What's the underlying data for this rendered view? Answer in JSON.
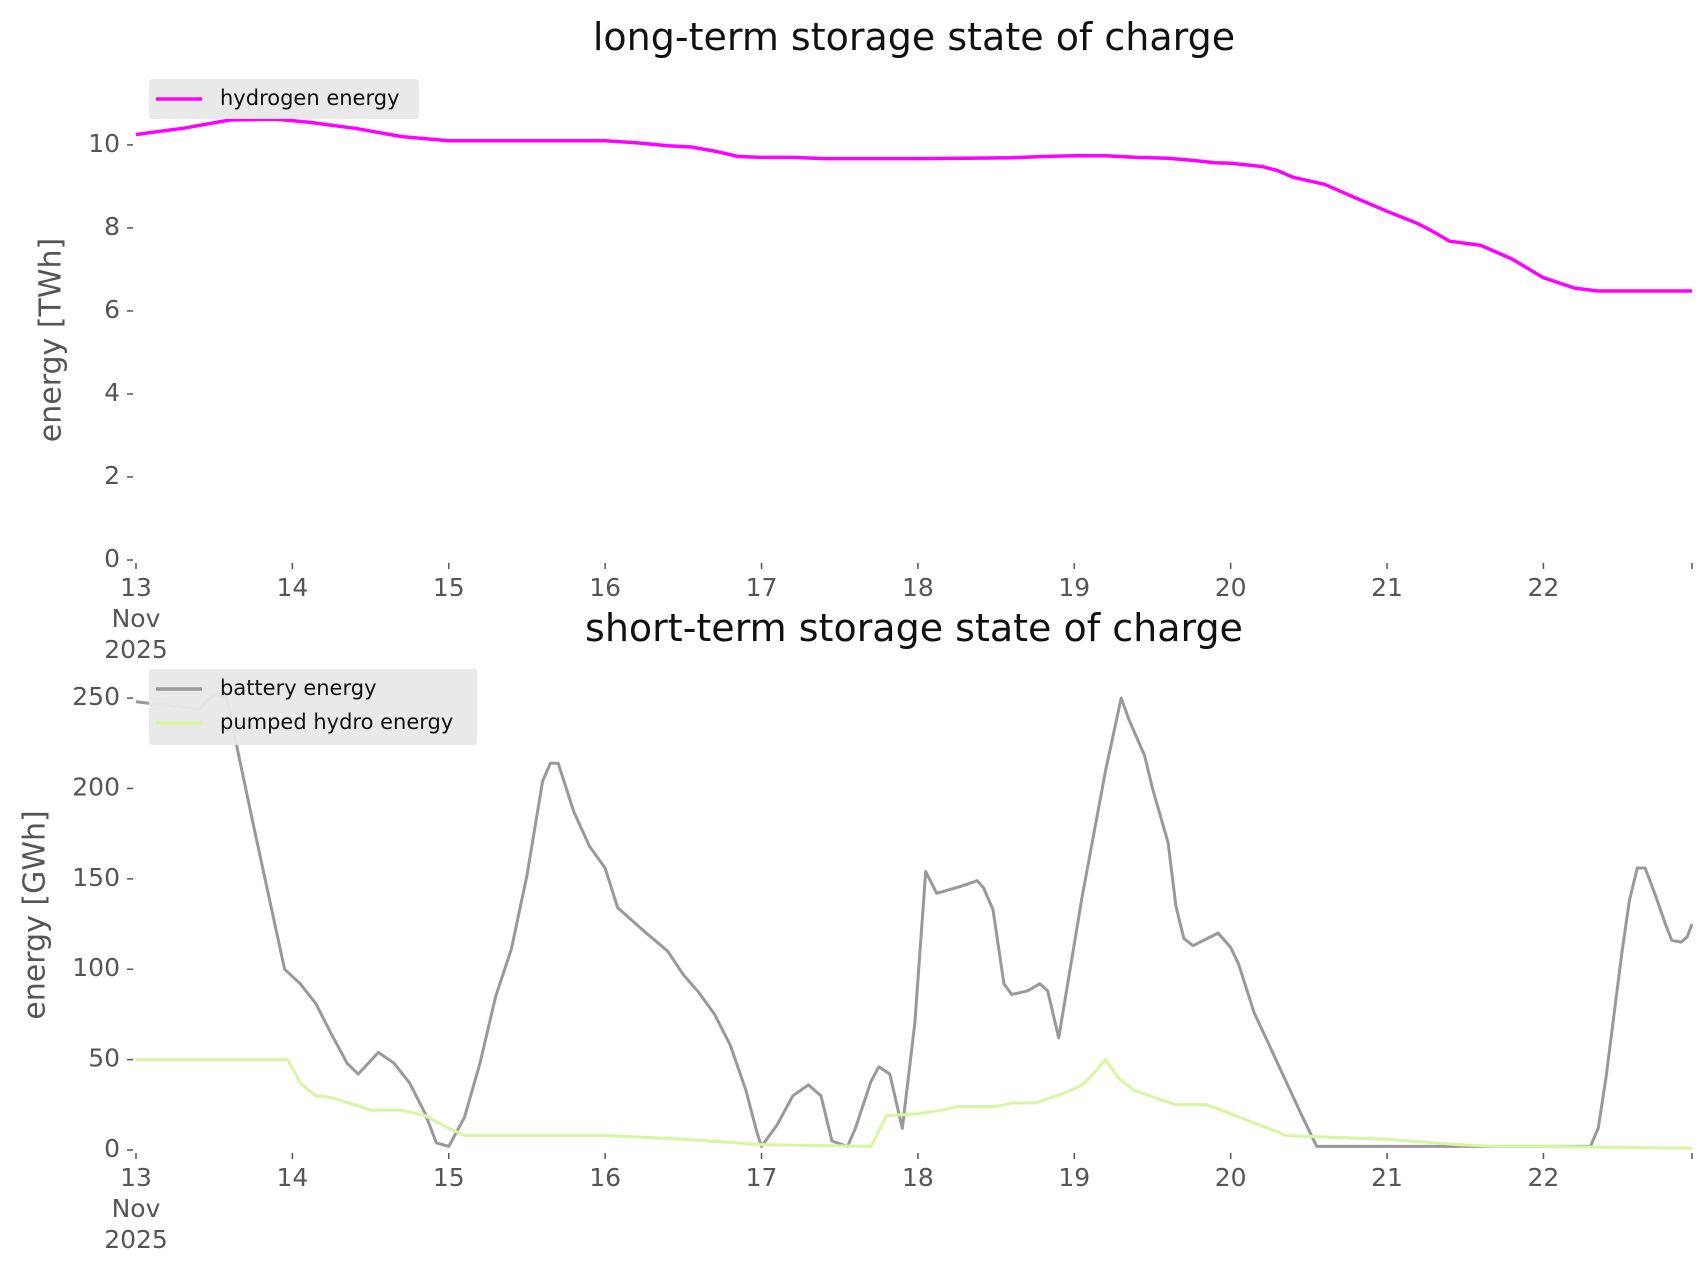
{
  "colors": {
    "hydrogen": "#ff00ff",
    "battery": "#999999",
    "pumped_hydro": "#d8f5a2",
    "legend_bg": "#e8e8e8",
    "axis_text": "#555555"
  },
  "chart_data": [
    {
      "type": "line",
      "title": "long-term storage state of charge",
      "ylabel": "energy [TWh]",
      "xlabel": "",
      "x_unit": "days (Nov 2025)",
      "xlim": [
        13,
        22.95
      ],
      "ylim": [
        0,
        10.6
      ],
      "yticks": [
        0,
        2,
        4,
        6,
        8,
        10
      ],
      "xticks": [
        {
          "value": 13,
          "lines": [
            "13",
            "Nov",
            "2025"
          ]
        },
        {
          "value": 14,
          "lines": [
            "14"
          ]
        },
        {
          "value": 15,
          "lines": [
            "15"
          ]
        },
        {
          "value": 16,
          "lines": [
            "16"
          ]
        },
        {
          "value": 17,
          "lines": [
            "17"
          ]
        },
        {
          "value": 18,
          "lines": [
            "18"
          ]
        },
        {
          "value": 19,
          "lines": [
            "19"
          ]
        },
        {
          "value": 20,
          "lines": [
            "20"
          ]
        },
        {
          "value": 21,
          "lines": [
            "21"
          ]
        },
        {
          "value": 22,
          "lines": [
            "22"
          ]
        }
      ],
      "legend": "upper-left",
      "grid": false,
      "series": [
        {
          "name": "hydrogen energy",
          "color": "#ff00ff",
          "points": [
            [
              13.0,
              10.25
            ],
            [
              13.3,
              10.4
            ],
            [
              13.6,
              10.6
            ],
            [
              13.9,
              10.62
            ],
            [
              14.1,
              10.55
            ],
            [
              14.4,
              10.4
            ],
            [
              14.7,
              10.2
            ],
            [
              15.0,
              10.1
            ],
            [
              15.5,
              10.1
            ],
            [
              16.0,
              10.1
            ],
            [
              16.2,
              10.05
            ],
            [
              16.4,
              9.98
            ],
            [
              16.55,
              9.95
            ],
            [
              16.7,
              9.85
            ],
            [
              16.85,
              9.72
            ],
            [
              17.0,
              9.7
            ],
            [
              17.2,
              9.7
            ],
            [
              17.4,
              9.67
            ],
            [
              17.6,
              9.67
            ],
            [
              18.0,
              9.67
            ],
            [
              18.3,
              9.68
            ],
            [
              18.6,
              9.69
            ],
            [
              18.8,
              9.72
            ],
            [
              19.0,
              9.74
            ],
            [
              19.2,
              9.74
            ],
            [
              19.4,
              9.7
            ],
            [
              19.6,
              9.68
            ],
            [
              19.75,
              9.63
            ],
            [
              19.9,
              9.57
            ],
            [
              20.0,
              9.56
            ],
            [
              20.2,
              9.48
            ],
            [
              20.3,
              9.38
            ],
            [
              20.4,
              9.22
            ],
            [
              20.6,
              9.05
            ],
            [
              20.8,
              8.72
            ],
            [
              21.0,
              8.4
            ],
            [
              21.2,
              8.1
            ],
            [
              21.3,
              7.9
            ],
            [
              21.4,
              7.68
            ],
            [
              21.6,
              7.58
            ],
            [
              21.8,
              7.25
            ],
            [
              22.0,
              6.8
            ],
            [
              22.2,
              6.55
            ],
            [
              22.35,
              6.48
            ],
            [
              22.95,
              6.48
            ]
          ]
        }
      ]
    },
    {
      "type": "line",
      "title": "short-term storage state of charge",
      "ylabel": "energy [GWh]",
      "xlabel": "",
      "x_unit": "days (Nov 2025)",
      "xlim": [
        13,
        22.95
      ],
      "ylim": [
        0,
        260
      ],
      "yticks": [
        0,
        50,
        100,
        150,
        200,
        250
      ],
      "xticks": [
        {
          "value": 13,
          "lines": [
            "13",
            "Nov",
            "2025"
          ]
        },
        {
          "value": 14,
          "lines": [
            "14"
          ]
        },
        {
          "value": 15,
          "lines": [
            "15"
          ]
        },
        {
          "value": 16,
          "lines": [
            "16"
          ]
        },
        {
          "value": 17,
          "lines": [
            "17"
          ]
        },
        {
          "value": 18,
          "lines": [
            "18"
          ]
        },
        {
          "value": 19,
          "lines": [
            "19"
          ]
        },
        {
          "value": 20,
          "lines": [
            "20"
          ]
        },
        {
          "value": 21,
          "lines": [
            "21"
          ]
        },
        {
          "value": 22,
          "lines": [
            "22"
          ]
        }
      ],
      "legend": "upper-left",
      "grid": false,
      "series": [
        {
          "name": "battery energy",
          "color": "#999999",
          "points": [
            [
              13.0,
              248
            ],
            [
              13.4,
              244
            ],
            [
              13.5,
              252
            ],
            [
              13.58,
              250
            ],
            [
              13.75,
              180
            ],
            [
              13.95,
              100
            ],
            [
              14.05,
              92
            ],
            [
              14.15,
              81
            ],
            [
              14.25,
              64
            ],
            [
              14.35,
              48
            ],
            [
              14.42,
              42
            ],
            [
              14.55,
              54
            ],
            [
              14.65,
              48
            ],
            [
              14.75,
              37
            ],
            [
              14.85,
              20
            ],
            [
              14.92,
              4
            ],
            [
              15.0,
              2
            ],
            [
              15.1,
              18
            ],
            [
              15.2,
              48
            ],
            [
              15.3,
              85
            ],
            [
              15.4,
              111
            ],
            [
              15.5,
              152
            ],
            [
              15.6,
              204
            ],
            [
              15.65,
              214
            ],
            [
              15.7,
              214
            ],
            [
              15.8,
              187
            ],
            [
              15.9,
              168
            ],
            [
              16.0,
              156
            ],
            [
              16.08,
              134
            ],
            [
              16.25,
              121
            ],
            [
              16.4,
              110
            ],
            [
              16.5,
              97
            ],
            [
              16.6,
              87
            ],
            [
              16.7,
              75
            ],
            [
              16.8,
              58
            ],
            [
              16.9,
              33
            ],
            [
              16.97,
              10
            ],
            [
              17.0,
              2
            ],
            [
              17.1,
              14
            ],
            [
              17.2,
              30
            ],
            [
              17.3,
              36
            ],
            [
              17.38,
              30
            ],
            [
              17.45,
              5
            ],
            [
              17.55,
              2
            ],
            [
              17.6,
              12
            ],
            [
              17.7,
              38
            ],
            [
              17.75,
              46
            ],
            [
              17.82,
              42
            ],
            [
              17.9,
              12
            ],
            [
              17.98,
              70
            ],
            [
              18.05,
              154
            ],
            [
              18.12,
              142
            ],
            [
              18.28,
              146
            ],
            [
              18.38,
              149
            ],
            [
              18.42,
              145
            ],
            [
              18.48,
              133
            ],
            [
              18.55,
              92
            ],
            [
              18.6,
              86
            ],
            [
              18.7,
              88
            ],
            [
              18.78,
              92
            ],
            [
              18.83,
              88
            ],
            [
              18.9,
              62
            ],
            [
              19.05,
              140
            ],
            [
              19.2,
              210
            ],
            [
              19.3,
              250
            ],
            [
              19.35,
              238
            ],
            [
              19.45,
              218
            ],
            [
              19.5,
              200
            ],
            [
              19.6,
              170
            ],
            [
              19.65,
              135
            ],
            [
              19.7,
              117
            ],
            [
              19.76,
              113
            ],
            [
              19.85,
              117
            ],
            [
              19.92,
              120
            ],
            [
              20.0,
              112
            ],
            [
              20.05,
              103
            ],
            [
              20.15,
              76
            ],
            [
              20.3,
              48
            ],
            [
              20.45,
              20
            ],
            [
              20.55,
              2
            ],
            [
              22.3,
              2
            ],
            [
              22.35,
              12
            ],
            [
              22.4,
              40
            ],
            [
              22.5,
              108
            ],
            [
              22.55,
              138
            ],
            [
              22.6,
              156
            ],
            [
              22.65,
              156
            ],
            [
              22.72,
              140
            ],
            [
              22.78,
              125
            ],
            [
              22.82,
              116
            ],
            [
              22.88,
              115
            ],
            [
              22.92,
              118
            ],
            [
              22.95,
              125
            ]
          ]
        },
        {
          "name": "pumped hydro energy",
          "color": "#d8f5a2",
          "points": [
            [
              13.0,
              50
            ],
            [
              13.97,
              50
            ],
            [
              14.05,
              37
            ],
            [
              14.15,
              30
            ],
            [
              14.25,
              29
            ],
            [
              14.4,
              25
            ],
            [
              14.5,
              22
            ],
            [
              14.7,
              22
            ],
            [
              14.85,
              19
            ],
            [
              15.0,
              12
            ],
            [
              15.1,
              8
            ],
            [
              15.5,
              8
            ],
            [
              16.0,
              8
            ],
            [
              16.5,
              6
            ],
            [
              17.0,
              3
            ],
            [
              17.7,
              2
            ],
            [
              17.8,
              19
            ],
            [
              18.0,
              20
            ],
            [
              18.15,
              22
            ],
            [
              18.25,
              24
            ],
            [
              18.5,
              24
            ],
            [
              18.6,
              26
            ],
            [
              18.75,
              26
            ],
            [
              18.95,
              32
            ],
            [
              19.05,
              36
            ],
            [
              19.1,
              40
            ],
            [
              19.2,
              50
            ],
            [
              19.28,
              40
            ],
            [
              19.38,
              33
            ],
            [
              19.45,
              31
            ],
            [
              19.55,
              28
            ],
            [
              19.65,
              25
            ],
            [
              19.85,
              25
            ],
            [
              20.0,
              20
            ],
            [
              20.15,
              15
            ],
            [
              20.3,
              10
            ],
            [
              20.35,
              8
            ],
            [
              21.0,
              6
            ],
            [
              21.45,
              3
            ],
            [
              21.7,
              2
            ],
            [
              22.0,
              2
            ],
            [
              22.95,
              1
            ]
          ]
        }
      ]
    }
  ]
}
